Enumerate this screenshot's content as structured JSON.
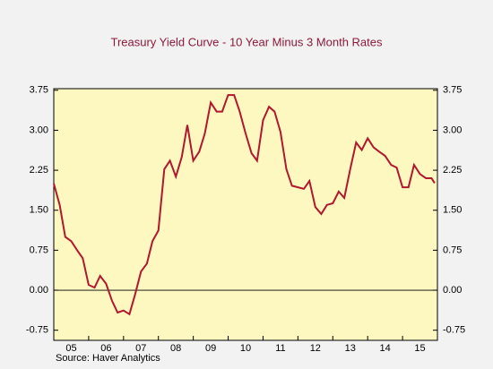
{
  "chart_data": {
    "type": "line",
    "title": "Treasury Yield Curve - 10 Year Minus 3 Month Rates",
    "source": "Source:   Haver Analytics",
    "x": [
      2005.0,
      2005.17,
      2005.33,
      2005.5,
      2005.67,
      2005.83,
      2006.0,
      2006.17,
      2006.33,
      2006.5,
      2006.67,
      2006.83,
      2007.0,
      2007.17,
      2007.33,
      2007.5,
      2007.67,
      2007.83,
      2008.0,
      2008.17,
      2008.33,
      2008.5,
      2008.67,
      2008.83,
      2009.0,
      2009.17,
      2009.33,
      2009.5,
      2009.67,
      2009.83,
      2010.0,
      2010.17,
      2010.33,
      2010.5,
      2010.67,
      2010.83,
      2011.0,
      2011.17,
      2011.33,
      2011.5,
      2011.67,
      2011.83,
      2012.0,
      2012.17,
      2012.33,
      2012.5,
      2012.67,
      2012.83,
      2013.0,
      2013.17,
      2013.33,
      2013.5,
      2013.67,
      2013.83,
      2014.0,
      2014.17,
      2014.33,
      2014.5,
      2014.67,
      2014.83,
      2015.0,
      2015.17,
      2015.33,
      2015.5,
      2015.67,
      2015.83,
      2015.92
    ],
    "series": [
      {
        "color": "#b0182e",
        "values": [
          2.0,
          1.6,
          1.0,
          0.92,
          0.75,
          0.6,
          0.1,
          0.05,
          0.27,
          0.12,
          -0.2,
          -0.42,
          -0.38,
          -0.45,
          -0.08,
          0.35,
          0.5,
          0.92,
          1.12,
          2.27,
          2.43,
          2.13,
          2.5,
          3.1,
          2.43,
          2.6,
          2.94,
          3.52,
          3.35,
          3.35,
          3.66,
          3.66,
          3.35,
          2.94,
          2.57,
          2.43,
          3.19,
          3.44,
          3.35,
          2.97,
          2.27,
          1.96,
          1.93,
          1.9,
          2.05,
          1.56,
          1.43,
          1.6,
          1.63,
          1.85,
          1.73,
          2.27,
          2.77,
          2.63,
          2.85,
          2.68,
          2.6,
          2.52,
          2.35,
          2.3,
          1.93,
          1.93,
          2.35,
          2.18,
          2.1,
          2.1,
          2.01
        ]
      }
    ],
    "xlim": [
      2005,
      2016
    ],
    "xticks": [
      {
        "value": 2005.5,
        "label": "05"
      },
      {
        "value": 2006.5,
        "label": "06"
      },
      {
        "value": 2007.5,
        "label": "07"
      },
      {
        "value": 2008.5,
        "label": "08"
      },
      {
        "value": 2009.5,
        "label": "09"
      },
      {
        "value": 2010.5,
        "label": "10"
      },
      {
        "value": 2011.5,
        "label": "11"
      },
      {
        "value": 2012.5,
        "label": "12"
      },
      {
        "value": 2013.5,
        "label": "13"
      },
      {
        "value": 2014.5,
        "label": "14"
      },
      {
        "value": 2015.5,
        "label": "15"
      }
    ],
    "ylim": [
      -0.94,
      3.78
    ],
    "yticks": [
      {
        "value": 3.75,
        "label": "3.75"
      },
      {
        "value": 3.0,
        "label": "3.00"
      },
      {
        "value": 2.25,
        "label": "2.25"
      },
      {
        "value": 1.5,
        "label": "1.50"
      },
      {
        "value": 0.75,
        "label": "0.75"
      },
      {
        "value": 0,
        "label": "0.00"
      },
      {
        "value": -0.75,
        "label": "-0.75"
      }
    ],
    "background": "#fcf8c0"
  }
}
